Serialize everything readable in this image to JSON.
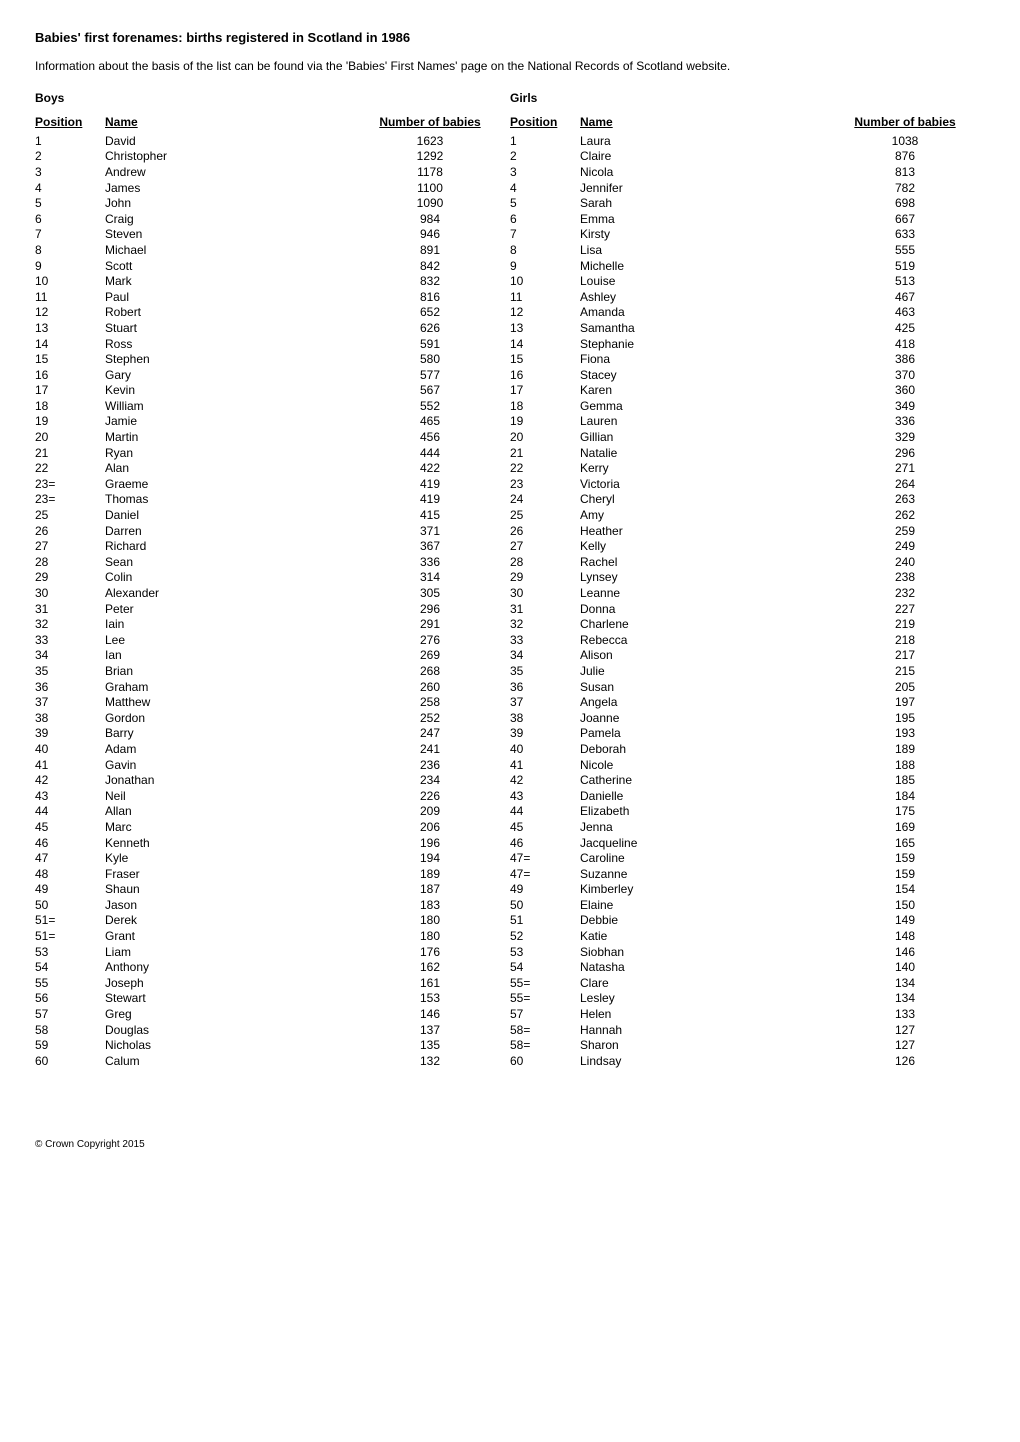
{
  "title": "Babies' first forenames: births registered in Scotland in 1986",
  "intro": "Information about the basis of the list can be found via the 'Babies' First Names' page on the National Records of Scotland website.",
  "footer": "© Crown Copyright 2015",
  "sections": {
    "boys": {
      "label": "Boys",
      "headers": {
        "position": "Position",
        "name": "Name",
        "number": "Number of babies"
      },
      "rows": [
        {
          "pos": "1",
          "name": "David",
          "num": "1623"
        },
        {
          "pos": "2",
          "name": "Christopher",
          "num": "1292"
        },
        {
          "pos": "3",
          "name": "Andrew",
          "num": "1178"
        },
        {
          "pos": "4",
          "name": "James",
          "num": "1100"
        },
        {
          "pos": "5",
          "name": "John",
          "num": "1090"
        },
        {
          "pos": "6",
          "name": "Craig",
          "num": "984"
        },
        {
          "pos": "7",
          "name": "Steven",
          "num": "946"
        },
        {
          "pos": "8",
          "name": "Michael",
          "num": "891"
        },
        {
          "pos": "9",
          "name": "Scott",
          "num": "842"
        },
        {
          "pos": "10",
          "name": "Mark",
          "num": "832"
        },
        {
          "pos": "11",
          "name": "Paul",
          "num": "816"
        },
        {
          "pos": "12",
          "name": "Robert",
          "num": "652"
        },
        {
          "pos": "13",
          "name": "Stuart",
          "num": "626"
        },
        {
          "pos": "14",
          "name": "Ross",
          "num": "591"
        },
        {
          "pos": "15",
          "name": "Stephen",
          "num": "580"
        },
        {
          "pos": "16",
          "name": "Gary",
          "num": "577"
        },
        {
          "pos": "17",
          "name": "Kevin",
          "num": "567"
        },
        {
          "pos": "18",
          "name": "William",
          "num": "552"
        },
        {
          "pos": "19",
          "name": "Jamie",
          "num": "465"
        },
        {
          "pos": "20",
          "name": "Martin",
          "num": "456"
        },
        {
          "pos": "21",
          "name": "Ryan",
          "num": "444"
        },
        {
          "pos": "22",
          "name": "Alan",
          "num": "422"
        },
        {
          "pos": "23=",
          "name": "Graeme",
          "num": "419"
        },
        {
          "pos": "23=",
          "name": "Thomas",
          "num": "419"
        },
        {
          "pos": "25",
          "name": "Daniel",
          "num": "415"
        },
        {
          "pos": "26",
          "name": "Darren",
          "num": "371"
        },
        {
          "pos": "27",
          "name": "Richard",
          "num": "367"
        },
        {
          "pos": "28",
          "name": "Sean",
          "num": "336"
        },
        {
          "pos": "29",
          "name": "Colin",
          "num": "314"
        },
        {
          "pos": "30",
          "name": "Alexander",
          "num": "305"
        },
        {
          "pos": "31",
          "name": "Peter",
          "num": "296"
        },
        {
          "pos": "32",
          "name": "Iain",
          "num": "291"
        },
        {
          "pos": "33",
          "name": "Lee",
          "num": "276"
        },
        {
          "pos": "34",
          "name": "Ian",
          "num": "269"
        },
        {
          "pos": "35",
          "name": "Brian",
          "num": "268"
        },
        {
          "pos": "36",
          "name": "Graham",
          "num": "260"
        },
        {
          "pos": "37",
          "name": "Matthew",
          "num": "258"
        },
        {
          "pos": "38",
          "name": "Gordon",
          "num": "252"
        },
        {
          "pos": "39",
          "name": "Barry",
          "num": "247"
        },
        {
          "pos": "40",
          "name": "Adam",
          "num": "241"
        },
        {
          "pos": "41",
          "name": "Gavin",
          "num": "236"
        },
        {
          "pos": "42",
          "name": "Jonathan",
          "num": "234"
        },
        {
          "pos": "43",
          "name": "Neil",
          "num": "226"
        },
        {
          "pos": "44",
          "name": "Allan",
          "num": "209"
        },
        {
          "pos": "45",
          "name": "Marc",
          "num": "206"
        },
        {
          "pos": "46",
          "name": "Kenneth",
          "num": "196"
        },
        {
          "pos": "47",
          "name": "Kyle",
          "num": "194"
        },
        {
          "pos": "48",
          "name": "Fraser",
          "num": "189"
        },
        {
          "pos": "49",
          "name": "Shaun",
          "num": "187"
        },
        {
          "pos": "50",
          "name": "Jason",
          "num": "183"
        },
        {
          "pos": "51=",
          "name": "Derek",
          "num": "180"
        },
        {
          "pos": "51=",
          "name": "Grant",
          "num": "180"
        },
        {
          "pos": "53",
          "name": "Liam",
          "num": "176"
        },
        {
          "pos": "54",
          "name": "Anthony",
          "num": "162"
        },
        {
          "pos": "55",
          "name": "Joseph",
          "num": "161"
        },
        {
          "pos": "56",
          "name": "Stewart",
          "num": "153"
        },
        {
          "pos": "57",
          "name": "Greg",
          "num": "146"
        },
        {
          "pos": "58",
          "name": "Douglas",
          "num": "137"
        },
        {
          "pos": "59",
          "name": "Nicholas",
          "num": "135"
        },
        {
          "pos": "60",
          "name": "Calum",
          "num": "132"
        }
      ]
    },
    "girls": {
      "label": "Girls",
      "headers": {
        "position": "Position",
        "name": "Name",
        "number": "Number of babies"
      },
      "rows": [
        {
          "pos": "1",
          "name": "Laura",
          "num": "1038"
        },
        {
          "pos": "2",
          "name": "Claire",
          "num": "876"
        },
        {
          "pos": "3",
          "name": "Nicola",
          "num": "813"
        },
        {
          "pos": "4",
          "name": "Jennifer",
          "num": "782"
        },
        {
          "pos": "5",
          "name": "Sarah",
          "num": "698"
        },
        {
          "pos": "6",
          "name": "Emma",
          "num": "667"
        },
        {
          "pos": "7",
          "name": "Kirsty",
          "num": "633"
        },
        {
          "pos": "8",
          "name": "Lisa",
          "num": "555"
        },
        {
          "pos": "9",
          "name": "Michelle",
          "num": "519"
        },
        {
          "pos": "10",
          "name": "Louise",
          "num": "513"
        },
        {
          "pos": "11",
          "name": "Ashley",
          "num": "467"
        },
        {
          "pos": "12",
          "name": "Amanda",
          "num": "463"
        },
        {
          "pos": "13",
          "name": "Samantha",
          "num": "425"
        },
        {
          "pos": "14",
          "name": "Stephanie",
          "num": "418"
        },
        {
          "pos": "15",
          "name": "Fiona",
          "num": "386"
        },
        {
          "pos": "16",
          "name": "Stacey",
          "num": "370"
        },
        {
          "pos": "17",
          "name": "Karen",
          "num": "360"
        },
        {
          "pos": "18",
          "name": "Gemma",
          "num": "349"
        },
        {
          "pos": "19",
          "name": "Lauren",
          "num": "336"
        },
        {
          "pos": "20",
          "name": "Gillian",
          "num": "329"
        },
        {
          "pos": "21",
          "name": "Natalie",
          "num": "296"
        },
        {
          "pos": "22",
          "name": "Kerry",
          "num": "271"
        },
        {
          "pos": "23",
          "name": "Victoria",
          "num": "264"
        },
        {
          "pos": "24",
          "name": "Cheryl",
          "num": "263"
        },
        {
          "pos": "25",
          "name": "Amy",
          "num": "262"
        },
        {
          "pos": "26",
          "name": "Heather",
          "num": "259"
        },
        {
          "pos": "27",
          "name": "Kelly",
          "num": "249"
        },
        {
          "pos": "28",
          "name": "Rachel",
          "num": "240"
        },
        {
          "pos": "29",
          "name": "Lynsey",
          "num": "238"
        },
        {
          "pos": "30",
          "name": "Leanne",
          "num": "232"
        },
        {
          "pos": "31",
          "name": "Donna",
          "num": "227"
        },
        {
          "pos": "32",
          "name": "Charlene",
          "num": "219"
        },
        {
          "pos": "33",
          "name": "Rebecca",
          "num": "218"
        },
        {
          "pos": "34",
          "name": "Alison",
          "num": "217"
        },
        {
          "pos": "35",
          "name": "Julie",
          "num": "215"
        },
        {
          "pos": "36",
          "name": "Susan",
          "num": "205"
        },
        {
          "pos": "37",
          "name": "Angela",
          "num": "197"
        },
        {
          "pos": "38",
          "name": "Joanne",
          "num": "195"
        },
        {
          "pos": "39",
          "name": "Pamela",
          "num": "193"
        },
        {
          "pos": "40",
          "name": "Deborah",
          "num": "189"
        },
        {
          "pos": "41",
          "name": "Nicole",
          "num": "188"
        },
        {
          "pos": "42",
          "name": "Catherine",
          "num": "185"
        },
        {
          "pos": "43",
          "name": "Danielle",
          "num": "184"
        },
        {
          "pos": "44",
          "name": "Elizabeth",
          "num": "175"
        },
        {
          "pos": "45",
          "name": "Jenna",
          "num": "169"
        },
        {
          "pos": "46",
          "name": "Jacqueline",
          "num": "165"
        },
        {
          "pos": "47=",
          "name": "Caroline",
          "num": "159"
        },
        {
          "pos": "47=",
          "name": "Suzanne",
          "num": "159"
        },
        {
          "pos": "49",
          "name": "Kimberley",
          "num": "154"
        },
        {
          "pos": "50",
          "name": "Elaine",
          "num": "150"
        },
        {
          "pos": "51",
          "name": "Debbie",
          "num": "149"
        },
        {
          "pos": "52",
          "name": "Katie",
          "num": "148"
        },
        {
          "pos": "53",
          "name": "Siobhan",
          "num": "146"
        },
        {
          "pos": "54",
          "name": "Natasha",
          "num": "140"
        },
        {
          "pos": "55=",
          "name": "Clare",
          "num": "134"
        },
        {
          "pos": "55=",
          "name": "Lesley",
          "num": "134"
        },
        {
          "pos": "57",
          "name": "Helen",
          "num": "133"
        },
        {
          "pos": "58=",
          "name": "Hannah",
          "num": "127"
        },
        {
          "pos": "58=",
          "name": "Sharon",
          "num": "127"
        },
        {
          "pos": "60",
          "name": "Lindsay",
          "num": "126"
        }
      ]
    }
  }
}
